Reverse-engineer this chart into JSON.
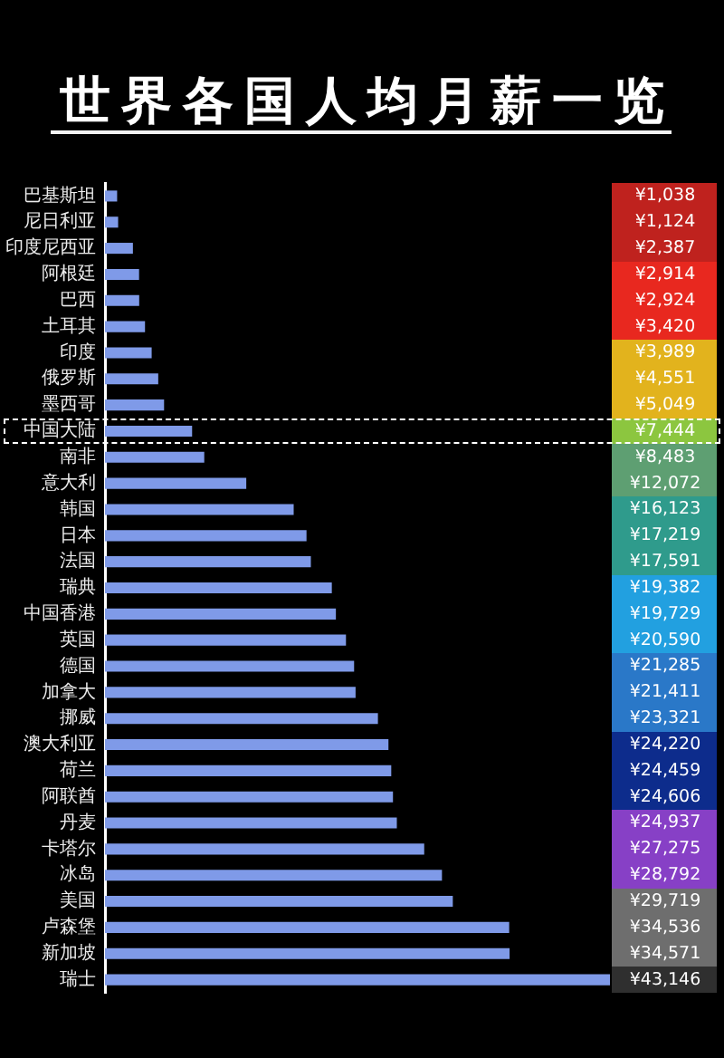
{
  "chart_data": {
    "type": "bar",
    "title": "世界各国人均月薪一览",
    "orientation": "horizontal",
    "tick_labels": "y",
    "categories": [
      "巴基斯坦",
      "尼日利亚",
      "印度尼西亚",
      "阿根廷",
      "巴西",
      "土耳其",
      "印度",
      "俄罗斯",
      "墨西哥",
      "中国大陆",
      "南非",
      "意大利",
      "韩国",
      "日本",
      "法国",
      "瑞典",
      "中国香港",
      "英国",
      "德国",
      "加拿大",
      "挪威",
      "澳大利亚",
      "荷兰",
      "阿联酋",
      "丹麦",
      "卡塔尔",
      "冰岛",
      "美国",
      "卢森堡",
      "新加坡",
      "瑞士"
    ],
    "values": [
      1038,
      1124,
      2387,
      2914,
      2924,
      3420,
      3989,
      4551,
      5049,
      7444,
      8483,
      12072,
      16123,
      17219,
      17591,
      19382,
      19729,
      20590,
      21285,
      21411,
      23321,
      24220,
      24459,
      24606,
      24937,
      27275,
      28792,
      29719,
      34536,
      34571,
      43146
    ],
    "value_labels": [
      "¥1,038",
      "¥1,124",
      "¥2,387",
      "¥2,914",
      "¥2,924",
      "¥3,420",
      "¥3,989",
      "¥4,551",
      "¥5,049",
      "¥7,444",
      "¥8,483",
      "¥12,072",
      "¥16,123",
      "¥17,219",
      "¥17,591",
      "¥19,382",
      "¥19,729",
      "¥20,590",
      "¥21,285",
      "¥21,411",
      "¥23,321",
      "¥24,220",
      "¥24,459",
      "¥24,606",
      "¥24,937",
      "¥27,275",
      "¥28,792",
      "¥29,719",
      "¥34,536",
      "¥34,571",
      "¥43,146"
    ],
    "color": "#7f9ae8"
  }
}
